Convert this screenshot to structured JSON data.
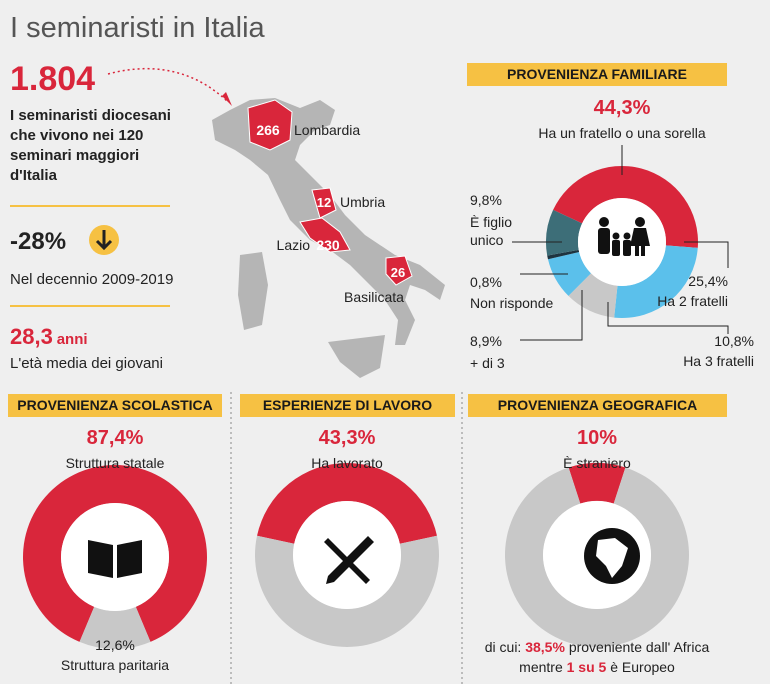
{
  "title": "I seminaristi in Italia",
  "summary": {
    "total": "1.804",
    "total_text": "I seminaristi diocesani che vivono nei 120 seminari maggiori d'Italia",
    "change": "-28%",
    "change_text": "Nel decennio 2009-2019",
    "age": "28,3",
    "age_unit": "anni",
    "age_text": "L'età media dei giovani"
  },
  "map": {
    "regions": [
      {
        "name": "Lombardia",
        "value": 266
      },
      {
        "name": "Umbria",
        "value": 12
      },
      {
        "name": "Lazio",
        "value": 230
      },
      {
        "name": "Basilicata",
        "value": 26
      }
    ]
  },
  "chart_data": [
    {
      "type": "pie",
      "title": "PROVENIENZA FAMILIARE",
      "categories": [
        "Ha un fratello o una sorella",
        "Ha 2 fratelli",
        "Ha 3 fratelli",
        "+ di 3",
        "Non risponde",
        "È figlio unico"
      ],
      "values": [
        44.3,
        25.4,
        10.8,
        8.9,
        0.8,
        9.8
      ],
      "value_labels": [
        "44,3%",
        "25,4%",
        "10,8%",
        "8,9%",
        "0,8%",
        "9,8%"
      ],
      "colors": [
        "#d9263b",
        "#5bc0eb",
        "#c8c8c8",
        "#5bc0eb",
        "#1e3440",
        "#3d6e78"
      ]
    },
    {
      "type": "pie",
      "title": "PROVENIENZA SCOLASTICA",
      "categories": [
        "Struttura statale",
        "Struttura paritaria"
      ],
      "values": [
        87.4,
        12.6
      ],
      "value_labels": [
        "87,4%",
        "12,6%"
      ],
      "colors": [
        "#d9263b",
        "#c8c8c8"
      ]
    },
    {
      "type": "pie",
      "title": "ESPERIENZE DI LAVORO",
      "categories": [
        "Ha lavorato",
        null
      ],
      "values": [
        43.3,
        56.7
      ],
      "value_labels": [
        "43,3%",
        null
      ],
      "colors": [
        "#d9263b",
        "#c8c8c8"
      ]
    },
    {
      "type": "pie",
      "title": "PROVENIENZA GEOGRAFICA",
      "categories": [
        "È straniero",
        null
      ],
      "values": [
        10,
        90
      ],
      "value_labels": [
        "10%",
        null
      ],
      "colors": [
        "#d9263b",
        "#c8c8c8"
      ],
      "note": [
        [
          "di cui:",
          "38,5%",
          "proveniente dall' Africa"
        ],
        [
          "mentre",
          "1 su 5",
          "è Europeo"
        ]
      ]
    }
  ]
}
